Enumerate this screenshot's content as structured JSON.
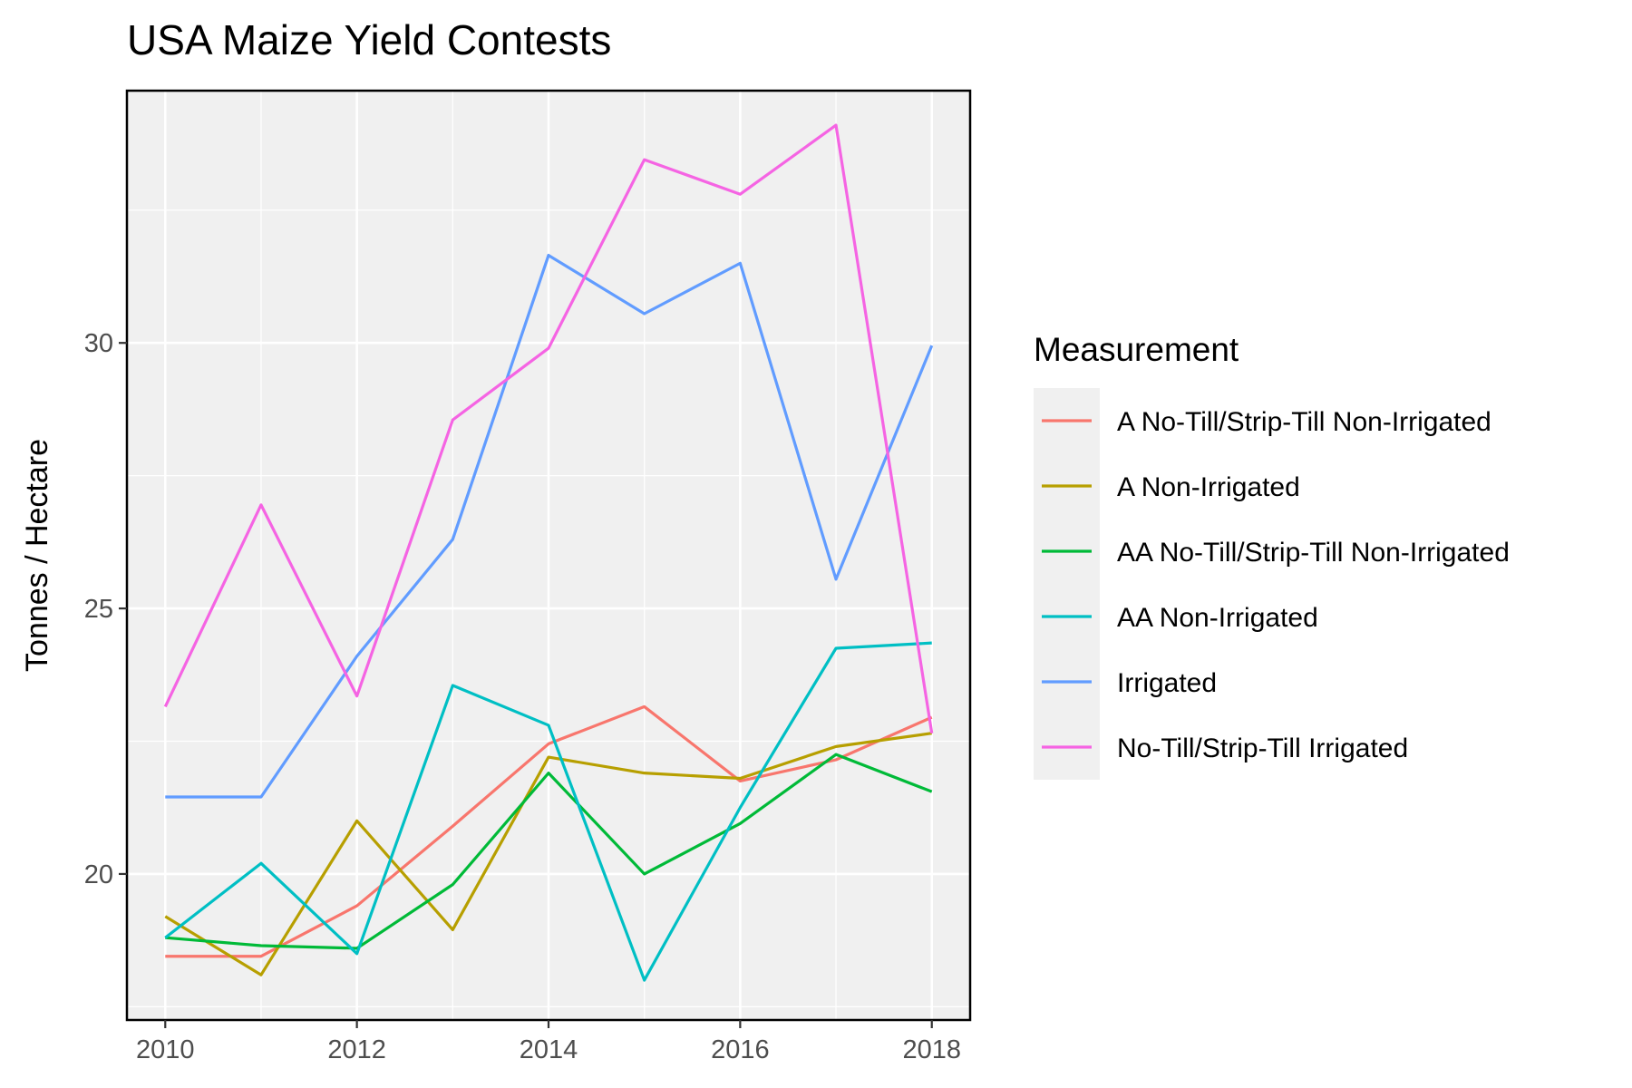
{
  "chart_data": {
    "type": "line",
    "title": "USA Maize Yield Contests",
    "xlabel": "",
    "ylabel": "Tonnes / Hectare",
    "x": [
      2010,
      2011,
      2012,
      2013,
      2014,
      2015,
      2016,
      2017,
      2018
    ],
    "xlim": [
      2009.6,
      2018.4
    ],
    "ylim": [
      17.25,
      34.75
    ],
    "x_ticks": [
      2010,
      2012,
      2014,
      2016,
      2018
    ],
    "y_ticks": [
      20,
      25,
      30
    ],
    "x_tick_labels": [
      "2010",
      "2012",
      "2014",
      "2016",
      "2018"
    ],
    "y_tick_labels": [
      "20",
      "25",
      "30"
    ],
    "grid": true,
    "legend_title": "Measurement",
    "legend_position": "right",
    "series": [
      {
        "name": "A No-Till/Strip-Till Non-Irrigated",
        "color": "#F8766D",
        "values": [
          18.45,
          18.45,
          19.4,
          20.9,
          22.45,
          23.15,
          21.75,
          22.15,
          22.95
        ]
      },
      {
        "name": "A Non-Irrigated",
        "color": "#B79F00",
        "values": [
          19.2,
          18.1,
          21.0,
          18.95,
          22.2,
          21.9,
          21.8,
          22.4,
          22.65
        ]
      },
      {
        "name": "AA No-Till/Strip-Till Non-Irrigated",
        "color": "#00BA38",
        "values": [
          18.8,
          18.65,
          18.6,
          19.8,
          21.9,
          20.0,
          20.95,
          22.25,
          21.55
        ]
      },
      {
        "name": "AA Non-Irrigated",
        "color": "#00BFC4",
        "values": [
          18.8,
          20.2,
          18.5,
          23.55,
          22.8,
          18.0,
          21.25,
          24.25,
          24.35
        ]
      },
      {
        "name": "Irrigated",
        "color": "#619CFF",
        "values": [
          21.45,
          21.45,
          24.1,
          26.3,
          31.65,
          30.55,
          31.5,
          25.55,
          29.95
        ]
      },
      {
        "name": "No-Till/Strip-Till Irrigated",
        "color": "#F564E3",
        "values": [
          23.15,
          26.95,
          23.35,
          28.55,
          29.9,
          33.45,
          32.8,
          34.1,
          22.65
        ]
      }
    ]
  }
}
